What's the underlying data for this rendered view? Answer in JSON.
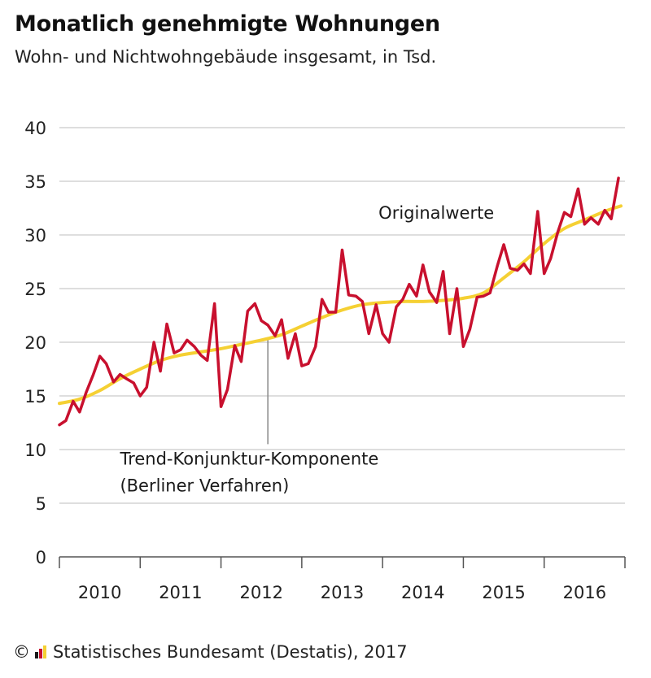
{
  "header": {
    "title": "Monatlich genehmigte Wohnungen",
    "subtitle": "Wohn- und Nichtwohngebäude insgesamt, in Tsd."
  },
  "footer": {
    "copyright_symbol": "©",
    "source": "Statistisches Bundesamt (Destatis), 2017",
    "logo_icon": "destatis-logo-icon"
  },
  "colors": {
    "original": "#c8102e",
    "trend": "#f5d033",
    "grid": "#d3d3d3",
    "axis": "#555555"
  },
  "chart_data": {
    "type": "line",
    "title": "Monatlich genehmigte Wohnungen",
    "subtitle": "Wohn- und Nichtwohngebäude insgesamt, in Tsd.",
    "ylim": [
      0,
      40
    ],
    "yticks": [
      "0",
      "5",
      "10",
      "15",
      "20",
      "25",
      "30",
      "35",
      "40"
    ],
    "xlim": [
      2010.0,
      2017.0
    ],
    "xticks": [
      {
        "label": "2010",
        "x": 2010.5
      },
      {
        "label": "2011",
        "x": 2011.5
      },
      {
        "label": "2012",
        "x": 2012.5
      },
      {
        "label": "2013",
        "x": 2013.5
      },
      {
        "label": "2014",
        "x": 2014.5
      },
      {
        "label": "2015",
        "x": 2015.5
      },
      {
        "label": "2016",
        "x": 2016.5
      }
    ],
    "year_boundaries": [
      2010,
      2011,
      2012,
      2013,
      2014,
      2015,
      2016,
      2017
    ],
    "grid": true,
    "series": [
      {
        "name": "Originalwerte",
        "color": "#c8102e",
        "x": [
          2010.0,
          2010.08,
          2010.17,
          2010.25,
          2010.33,
          2010.42,
          2010.5,
          2010.58,
          2010.67,
          2010.75,
          2010.83,
          2010.92,
          2011.0,
          2011.08,
          2011.17,
          2011.25,
          2011.33,
          2011.42,
          2011.5,
          2011.58,
          2011.67,
          2011.75,
          2011.83,
          2011.92,
          2012.0,
          2012.08,
          2012.17,
          2012.25,
          2012.33,
          2012.42,
          2012.5,
          2012.58,
          2012.67,
          2012.75,
          2012.83,
          2012.92,
          2013.0,
          2013.08,
          2013.17,
          2013.25,
          2013.33,
          2013.42,
          2013.5,
          2013.58,
          2013.67,
          2013.75,
          2013.83,
          2013.92,
          2014.0,
          2014.08,
          2014.17,
          2014.25,
          2014.33,
          2014.42,
          2014.5,
          2014.58,
          2014.67,
          2014.75,
          2014.83,
          2014.92,
          2015.0,
          2015.08,
          2015.17,
          2015.25,
          2015.33,
          2015.42,
          2015.5,
          2015.58,
          2015.67,
          2015.75,
          2015.83,
          2015.92,
          2016.0,
          2016.08,
          2016.17,
          2016.25,
          2016.33,
          2016.42,
          2016.5,
          2016.58,
          2016.67,
          2016.75,
          2016.83,
          2016.92
        ],
        "values": [
          12.3,
          12.7,
          14.5,
          13.5,
          15.3,
          17.0,
          18.7,
          18.0,
          16.3,
          17.0,
          16.6,
          16.2,
          15.0,
          15.8,
          20.0,
          17.3,
          21.7,
          19.0,
          19.3,
          20.2,
          19.6,
          18.8,
          18.3,
          23.6,
          14.0,
          15.6,
          19.7,
          18.2,
          22.9,
          23.6,
          22.0,
          21.6,
          20.6,
          22.1,
          18.5,
          20.8,
          17.8,
          18.0,
          19.6,
          24.0,
          22.8,
          22.8,
          28.6,
          24.4,
          24.3,
          23.8,
          20.8,
          23.5,
          20.8,
          20.0,
          23.3,
          24.0,
          25.4,
          24.3,
          27.2,
          24.7,
          23.7,
          26.6,
          20.8,
          25.0,
          19.6,
          21.2,
          24.2,
          24.3,
          24.6,
          27.1,
          29.1,
          26.9,
          26.7,
          27.3,
          26.4,
          32.2,
          26.4,
          27.8,
          30.3,
          32.1,
          31.7,
          34.3,
          31.0,
          31.6,
          31.0,
          32.3,
          31.5,
          35.3
        ]
      },
      {
        "name": "Trend-Konjunktur-Komponente (Berliner Verfahren)",
        "color": "#f5d033",
        "x": [
          2010.0,
          2010.25,
          2010.5,
          2010.75,
          2011.0,
          2011.25,
          2011.5,
          2011.75,
          2012.0,
          2012.25,
          2012.5,
          2012.75,
          2013.0,
          2013.25,
          2013.5,
          2013.75,
          2014.0,
          2014.25,
          2014.5,
          2014.75,
          2015.0,
          2015.25,
          2015.5,
          2015.75,
          2016.0,
          2016.25,
          2016.5,
          2016.75,
          2016.95
        ],
        "values": [
          14.3,
          14.7,
          15.5,
          16.6,
          17.5,
          18.3,
          18.8,
          19.1,
          19.4,
          19.8,
          20.2,
          20.7,
          21.5,
          22.3,
          23.0,
          23.5,
          23.7,
          23.8,
          23.8,
          23.9,
          24.1,
          24.6,
          26.0,
          27.5,
          29.2,
          30.6,
          31.4,
          32.2,
          32.7
        ]
      }
    ],
    "annotations": [
      {
        "text": "Originalwerte",
        "x": 2013.95,
        "y": 31.5
      },
      {
        "text": "Trend-Konjunktur-Komponente",
        "x": 2010.75,
        "y": 8.6
      },
      {
        "text": "(Berliner Verfahren)",
        "x": 2010.75,
        "y": 6.1
      }
    ]
  }
}
